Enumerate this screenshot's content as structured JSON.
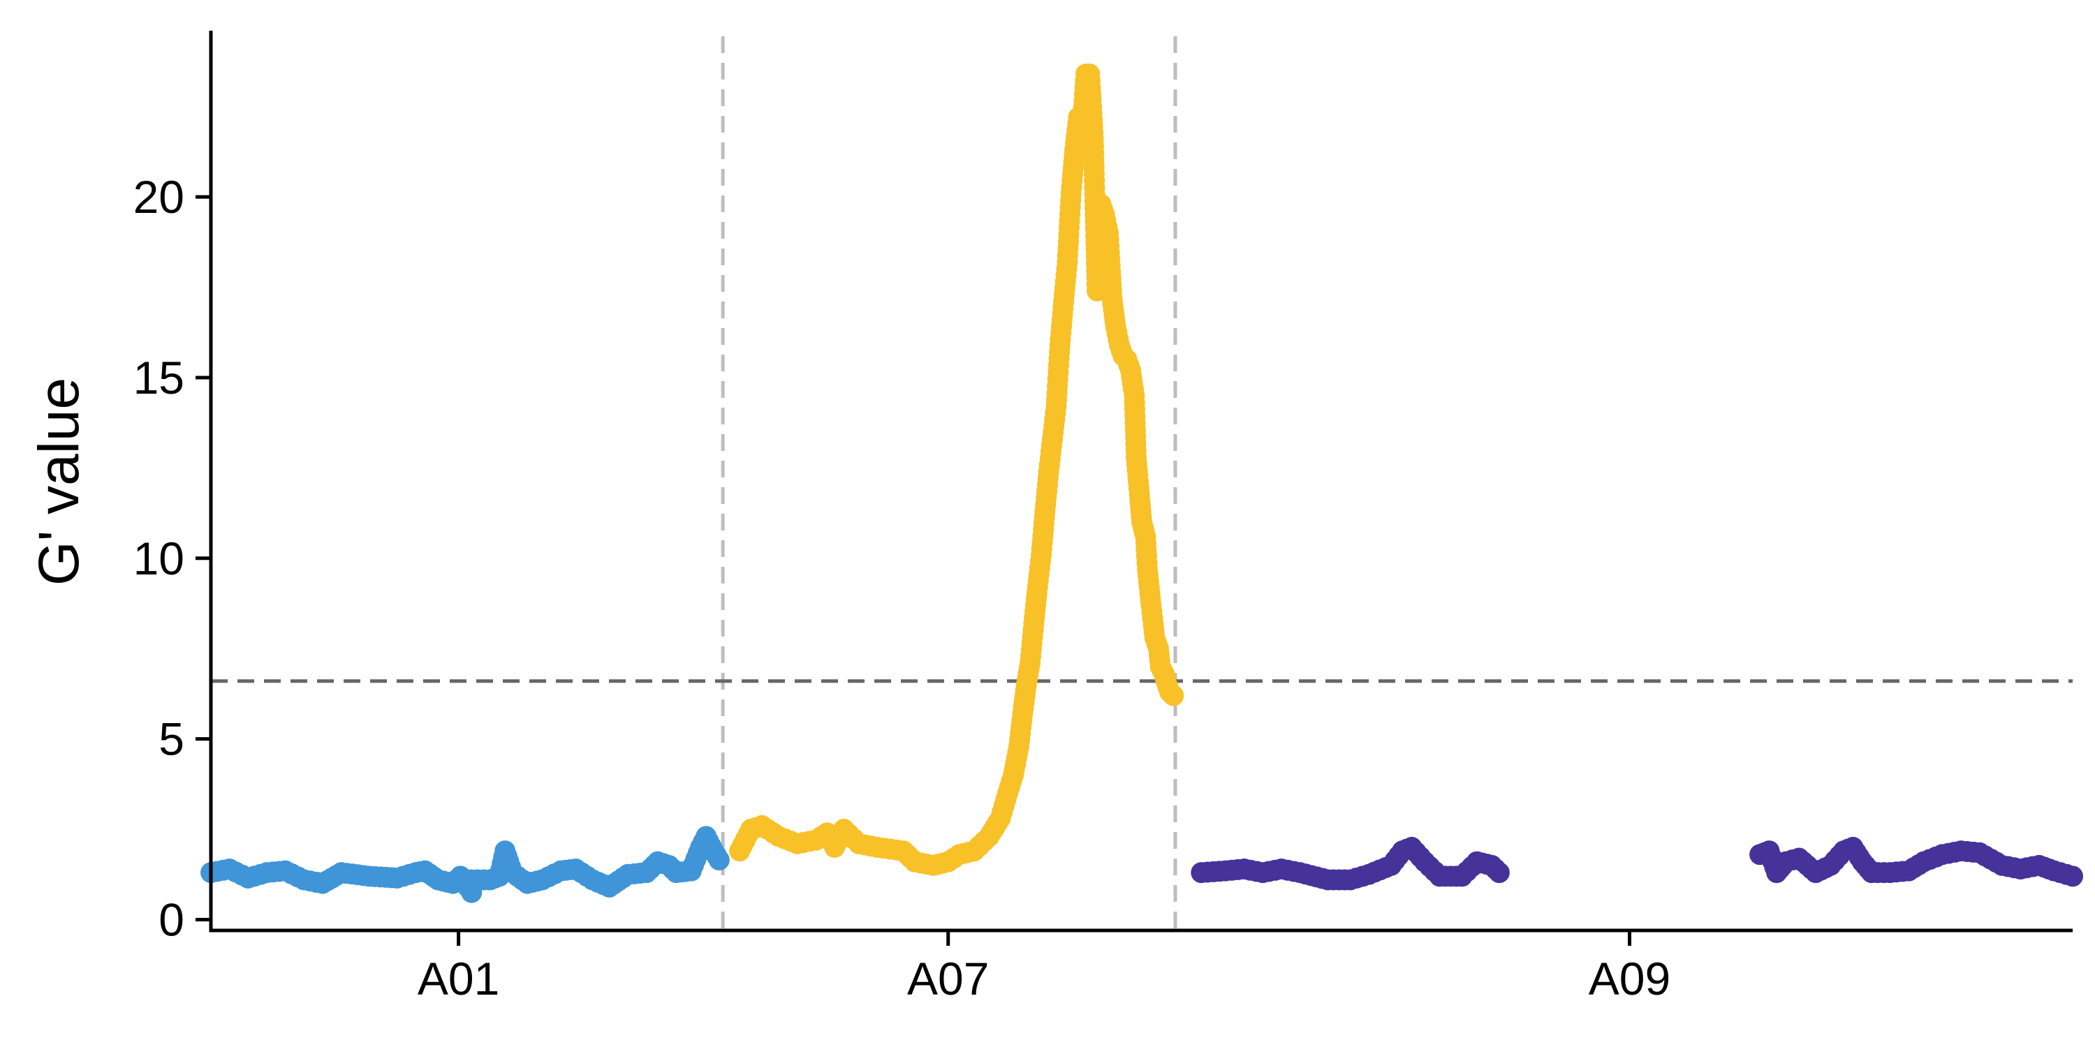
{
  "chart_data": {
    "type": "scatter",
    "ylabel": "G' value",
    "xlabel": "",
    "ylim": [
      -0.3,
      24.6
    ],
    "xlim": [
      0,
      1000
    ],
    "yticks": [
      0,
      5,
      10,
      15,
      20
    ],
    "xticks": [
      {
        "label": "A01",
        "x": 133
      },
      {
        "label": "A07",
        "x": 396
      },
      {
        "label": "A09",
        "x": 762
      }
    ],
    "threshold": 6.6,
    "chromosome_boundaries": [
      275,
      518
    ],
    "grid": false,
    "legend": "none",
    "series": [
      {
        "color": "#3f95d8",
        "segments": [
          [
            [
              0,
              1.3
            ],
            [
              10,
              1.4
            ],
            [
              20,
              1.15
            ],
            [
              30,
              1.3
            ],
            [
              40,
              1.35
            ],
            [
              50,
              1.1
            ],
            [
              60,
              1.0
            ],
            [
              70,
              1.3
            ],
            [
              85,
              1.2
            ],
            [
              100,
              1.15
            ],
            [
              110,
              1.3
            ],
            [
              115,
              1.35
            ],
            [
              122,
              1.1
            ],
            [
              130,
              1.0
            ],
            [
              134,
              1.2
            ],
            [
              138,
              0.9
            ],
            [
              140,
              0.75
            ]
          ],
          [
            [
              136,
              1.1
            ],
            [
              150,
              1.1
            ],
            [
              155,
              1.2
            ],
            [
              158,
              1.9
            ],
            [
              162,
              1.3
            ],
            [
              170,
              1.0
            ],
            [
              178,
              1.1
            ],
            [
              188,
              1.35
            ],
            [
              196,
              1.4
            ],
            [
              205,
              1.1
            ],
            [
              214,
              0.9
            ],
            [
              224,
              1.25
            ],
            [
              234,
              1.3
            ],
            [
              240,
              1.6
            ],
            [
              246,
              1.5
            ],
            [
              250,
              1.3
            ],
            [
              258,
              1.35
            ],
            [
              263,
              2.0
            ],
            [
              266,
              2.3
            ],
            [
              270,
              1.9
            ],
            [
              273,
              1.65
            ]
          ]
        ]
      },
      {
        "color": "#f8c127",
        "segments": [
          [
            [
              284,
              1.9
            ],
            [
              290,
              2.5
            ],
            [
              296,
              2.6
            ],
            [
              305,
              2.3
            ],
            [
              315,
              2.1
            ],
            [
              325,
              2.2
            ],
            [
              331,
              2.4
            ],
            [
              335,
              2.0
            ],
            [
              340,
              2.5
            ],
            [
              348,
              2.1
            ],
            [
              358,
              2.0
            ],
            [
              372,
              1.9
            ],
            [
              378,
              1.6
            ],
            [
              388,
              1.5
            ],
            [
              396,
              1.6
            ],
            [
              402,
              1.8
            ],
            [
              410,
              1.9
            ],
            [
              418,
              2.3
            ],
            [
              424,
              2.8
            ],
            [
              428,
              3.5
            ],
            [
              431,
              4.0
            ],
            [
              434,
              4.8
            ],
            [
              436,
              5.7
            ],
            [
              438,
              6.5
            ],
            [
              440,
              7.1
            ],
            [
              442,
              8.2
            ],
            [
              444,
              9.2
            ],
            [
              446,
              10.1
            ],
            [
              448,
              11.3
            ],
            [
              450,
              12.4
            ],
            [
              452,
              13.3
            ],
            [
              454,
              14.2
            ],
            [
              456,
              15.9
            ],
            [
              458,
              17.1
            ],
            [
              460,
              18.2
            ],
            [
              462,
              20.1
            ],
            [
              464,
              21.3
            ],
            [
              466,
              22.2
            ],
            [
              468,
              21.9
            ],
            [
              470,
              23.4
            ],
            [
              472,
              23.4
            ],
            [
              474,
              21.6
            ],
            [
              476,
              17.4
            ],
            [
              478,
              19.8
            ],
            [
              480,
              19.5
            ],
            [
              482,
              19.0
            ],
            [
              484,
              17.2
            ],
            [
              486,
              16.4
            ],
            [
              488,
              15.9
            ],
            [
              490,
              15.6
            ],
            [
              492,
              15.5
            ],
            [
              494,
              15.2
            ],
            [
              496,
              14.5
            ],
            [
              497,
              12.8
            ],
            [
              499,
              11.6
            ],
            [
              500,
              11.0
            ],
            [
              502,
              10.6
            ],
            [
              503,
              9.7
            ],
            [
              505,
              8.7
            ],
            [
              507,
              7.8
            ],
            [
              509,
              7.5
            ],
            [
              510,
              7.0
            ],
            [
              512,
              6.8
            ],
            [
              513,
              6.6
            ],
            [
              515,
              6.3
            ],
            [
              517,
              6.2
            ]
          ]
        ]
      },
      {
        "color": "#45339a",
        "segments": [
          [
            [
              532,
              1.3
            ],
            [
              545,
              1.35
            ],
            [
              555,
              1.4
            ],
            [
              565,
              1.3
            ],
            [
              575,
              1.4
            ],
            [
              585,
              1.3
            ],
            [
              600,
              1.1
            ],
            [
              612,
              1.1
            ],
            [
              622,
              1.25
            ],
            [
              634,
              1.5
            ],
            [
              640,
              1.9
            ],
            [
              645,
              2.0
            ],
            [
              652,
              1.6
            ],
            [
              660,
              1.2
            ],
            [
              672,
              1.2
            ],
            [
              680,
              1.6
            ],
            [
              688,
              1.5
            ],
            [
              692,
              1.3
            ]
          ],
          [
            [
              832,
              1.8
            ],
            [
              837,
              1.9
            ],
            [
              841,
              1.3
            ],
            [
              846,
              1.6
            ],
            [
              853,
              1.7
            ],
            [
              862,
              1.3
            ],
            [
              870,
              1.5
            ],
            [
              877,
              1.9
            ],
            [
              882,
              2.0
            ],
            [
              887,
              1.6
            ],
            [
              892,
              1.3
            ],
            [
              902,
              1.3
            ],
            [
              912,
              1.35
            ],
            [
              920,
              1.6
            ],
            [
              930,
              1.8
            ],
            [
              940,
              1.9
            ],
            [
              950,
              1.85
            ],
            [
              962,
              1.5
            ],
            [
              972,
              1.4
            ],
            [
              982,
              1.5
            ],
            [
              990,
              1.35
            ],
            [
              1000,
              1.2
            ]
          ]
        ]
      }
    ]
  }
}
